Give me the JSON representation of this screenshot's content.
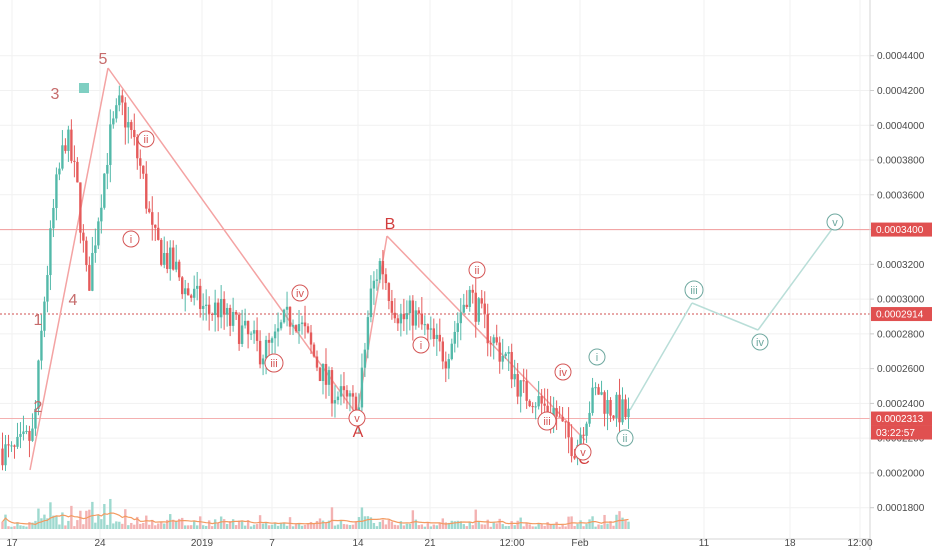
{
  "chart_data": {
    "type": "candlestick",
    "y_axis": {
      "ylim": [
        0.000162,
        0.000464
      ],
      "ticks": [
        "0.0001800",
        "0.0002000",
        "0.0002200",
        "0.0002400",
        "0.0002600",
        "0.0002800",
        "0.0003000",
        "0.0003200",
        "0.0003400",
        "0.0003600",
        "0.0003800",
        "0.0004000",
        "0.0004200",
        "0.0004400"
      ],
      "position": "right"
    },
    "x_axis": {
      "ticks": [
        "17",
        "24",
        "2019",
        "7",
        "14",
        "21",
        "12:00",
        "Feb",
        "11",
        "18",
        "12:00"
      ]
    },
    "colors": {
      "up": "#53b9a9",
      "down": "#e55b5b",
      "wave_line": "#f4a3a3",
      "projection": "#b9ded8",
      "ma": "#f39a60"
    },
    "price_path": [
      0.000214,
      0.00021,
      0.000216,
      0.000222,
      0.0003,
      0.00036,
      0.000395,
      0.000365,
      0.000305,
      0.00035,
      0.000392,
      0.000412,
      0.000395,
      0.000372,
      0.000335,
      0.000325,
      0.000318,
      0.000305,
      0.0003,
      0.000292,
      0.000295,
      0.000287,
      0.000283,
      0.000276,
      0.00027,
      0.000272,
      0.000285,
      0.000292,
      0.00028,
      0.000265,
      0.000252,
      0.000245,
      0.00024,
      0.000236,
      0.0003,
      0.000322,
      0.0003,
      0.000288,
      0.000292,
      0.000282,
      0.000274,
      0.000268,
      0.000285,
      0.000305,
      0.000293,
      0.00028,
      0.00027,
      0.000262,
      0.000246,
      0.000245,
      0.000238,
      0.000236,
      0.000222,
      0.000215,
      0.000235,
      0.000248,
      0.000238,
      0.000236,
      0.000231
    ],
    "horizontal_lines": [
      {
        "label": "0.0003400",
        "value": 0.00034,
        "style": "solid",
        "color": "#f29b9b",
        "badge_color": "#e05050"
      },
      {
        "label": "0.0002914",
        "value": 0.0002914,
        "style": "dotted",
        "color": "#d05050",
        "badge_color": "#e05050"
      },
      {
        "label": "0.0002313",
        "value": 0.0002313,
        "style": "solid",
        "color": "#f4b0b0",
        "badge_color": "#e05050"
      }
    ],
    "countdown": "03:22:57",
    "wave_labels": [
      {
        "text": "5",
        "color": "#c66b6b"
      },
      {
        "text": "3",
        "color": "#c66b6b"
      },
      {
        "text": "4",
        "color": "#c66b6b"
      },
      {
        "text": "1",
        "color": "#c66b6b"
      },
      {
        "text": "2",
        "color": "#c66b6b"
      },
      {
        "text": "B",
        "color": "#d23c3c"
      },
      {
        "text": "A",
        "color": "#d23c3c"
      },
      {
        "text": "C",
        "color": "#d23c3c"
      }
    ],
    "circle_labels": [
      {
        "text": "ii",
        "color": "#d45555"
      },
      {
        "text": "i",
        "color": "#d45555"
      },
      {
        "text": "iii",
        "color": "#d45555"
      },
      {
        "text": "iv",
        "color": "#d45555"
      },
      {
        "text": "v",
        "color": "#d45555"
      },
      {
        "text": "ii",
        "color": "#d45555"
      },
      {
        "text": "i",
        "color": "#d45555"
      },
      {
        "text": "iv",
        "color": "#d45555"
      },
      {
        "text": "iii",
        "color": "#d45555"
      },
      {
        "text": "v",
        "color": "#d45555"
      },
      {
        "text": "i",
        "color": "#6ea89f"
      },
      {
        "text": "ii",
        "color": "#6ea89f"
      },
      {
        "text": "iii",
        "color": "#6ea89f"
      },
      {
        "text": "iv",
        "color": "#6ea89f"
      },
      {
        "text": "v",
        "color": "#6ea89f"
      }
    ]
  }
}
